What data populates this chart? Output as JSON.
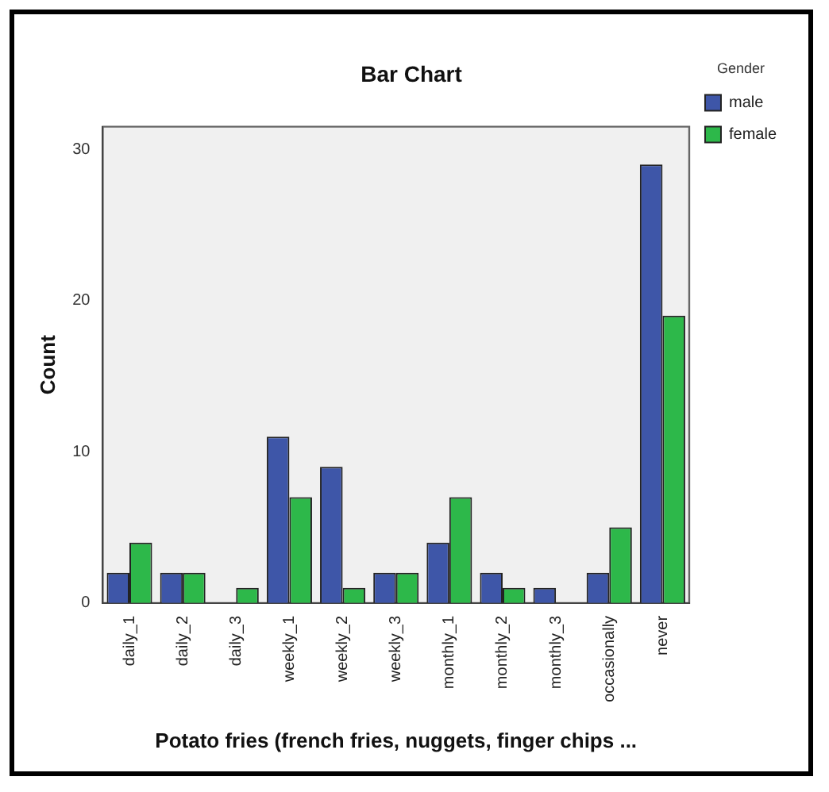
{
  "chart_data": {
    "type": "bar",
    "title": "Bar Chart",
    "xlabel": "Potato fries (french fries, nuggets, finger chips ...",
    "ylabel": "Count",
    "legend_title": "Gender",
    "categories": [
      "daily_1",
      "daily_2",
      "daily_3",
      "weekly_1",
      "weekly_2",
      "weekly_3",
      "monthly_1",
      "monthly_2",
      "monthly_3",
      "occasionally",
      "never"
    ],
    "series": [
      {
        "name": "male",
        "color": "#3e56a8",
        "values": [
          2,
          2,
          0,
          11,
          9,
          2,
          4,
          2,
          1,
          2,
          29
        ]
      },
      {
        "name": "female",
        "color": "#2db84a",
        "values": [
          4,
          2,
          1,
          7,
          1,
          2,
          7,
          1,
          0,
          5,
          19
        ]
      }
    ],
    "ylim": [
      0,
      31.5
    ],
    "yticks": [
      0,
      10,
      20,
      30
    ],
    "grid": false,
    "legend": "top right"
  }
}
